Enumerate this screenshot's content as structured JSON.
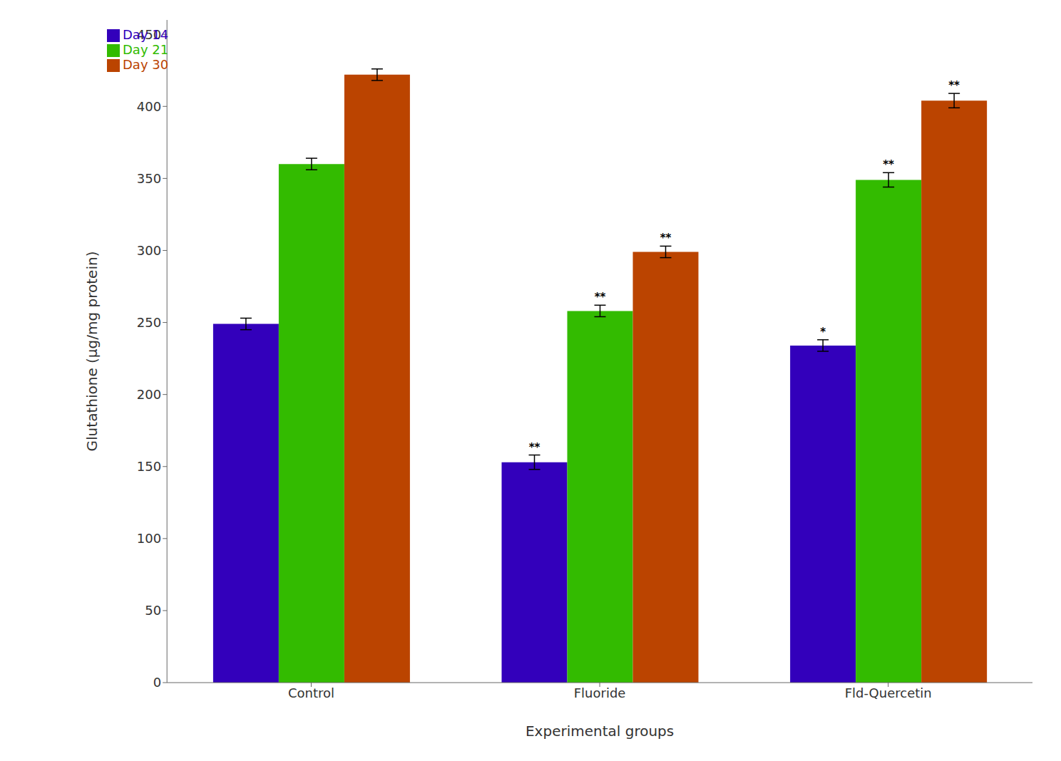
{
  "chart_data": {
    "type": "bar",
    "categories": [
      "Control",
      "Fluoride",
      "Fld-Quercetin"
    ],
    "series": [
      {
        "name": "Day 14",
        "color": "#3300bb",
        "values": [
          249,
          153,
          234
        ],
        "errors": [
          4,
          5,
          4
        ],
        "significance": [
          null,
          "**",
          "*"
        ]
      },
      {
        "name": "Day 21",
        "color": "#33bb00",
        "values": [
          360,
          258,
          349
        ],
        "errors": [
          4,
          4,
          5
        ],
        "significance": [
          null,
          "**",
          "**"
        ]
      },
      {
        "name": "Day 30",
        "color": "#bb4400",
        "values": [
          422,
          299,
          404
        ],
        "errors": [
          4,
          4,
          5
        ],
        "significance": [
          null,
          "**",
          "**"
        ]
      }
    ],
    "xlabel": "Experimental groups",
    "ylabel": "Glutathione (μg/mg protein)",
    "ylim": [
      0,
      460
    ],
    "yticks": [
      0,
      50,
      100,
      150,
      200,
      250,
      300,
      350,
      400,
      450
    ],
    "grid": false,
    "legend": "upper left"
  }
}
